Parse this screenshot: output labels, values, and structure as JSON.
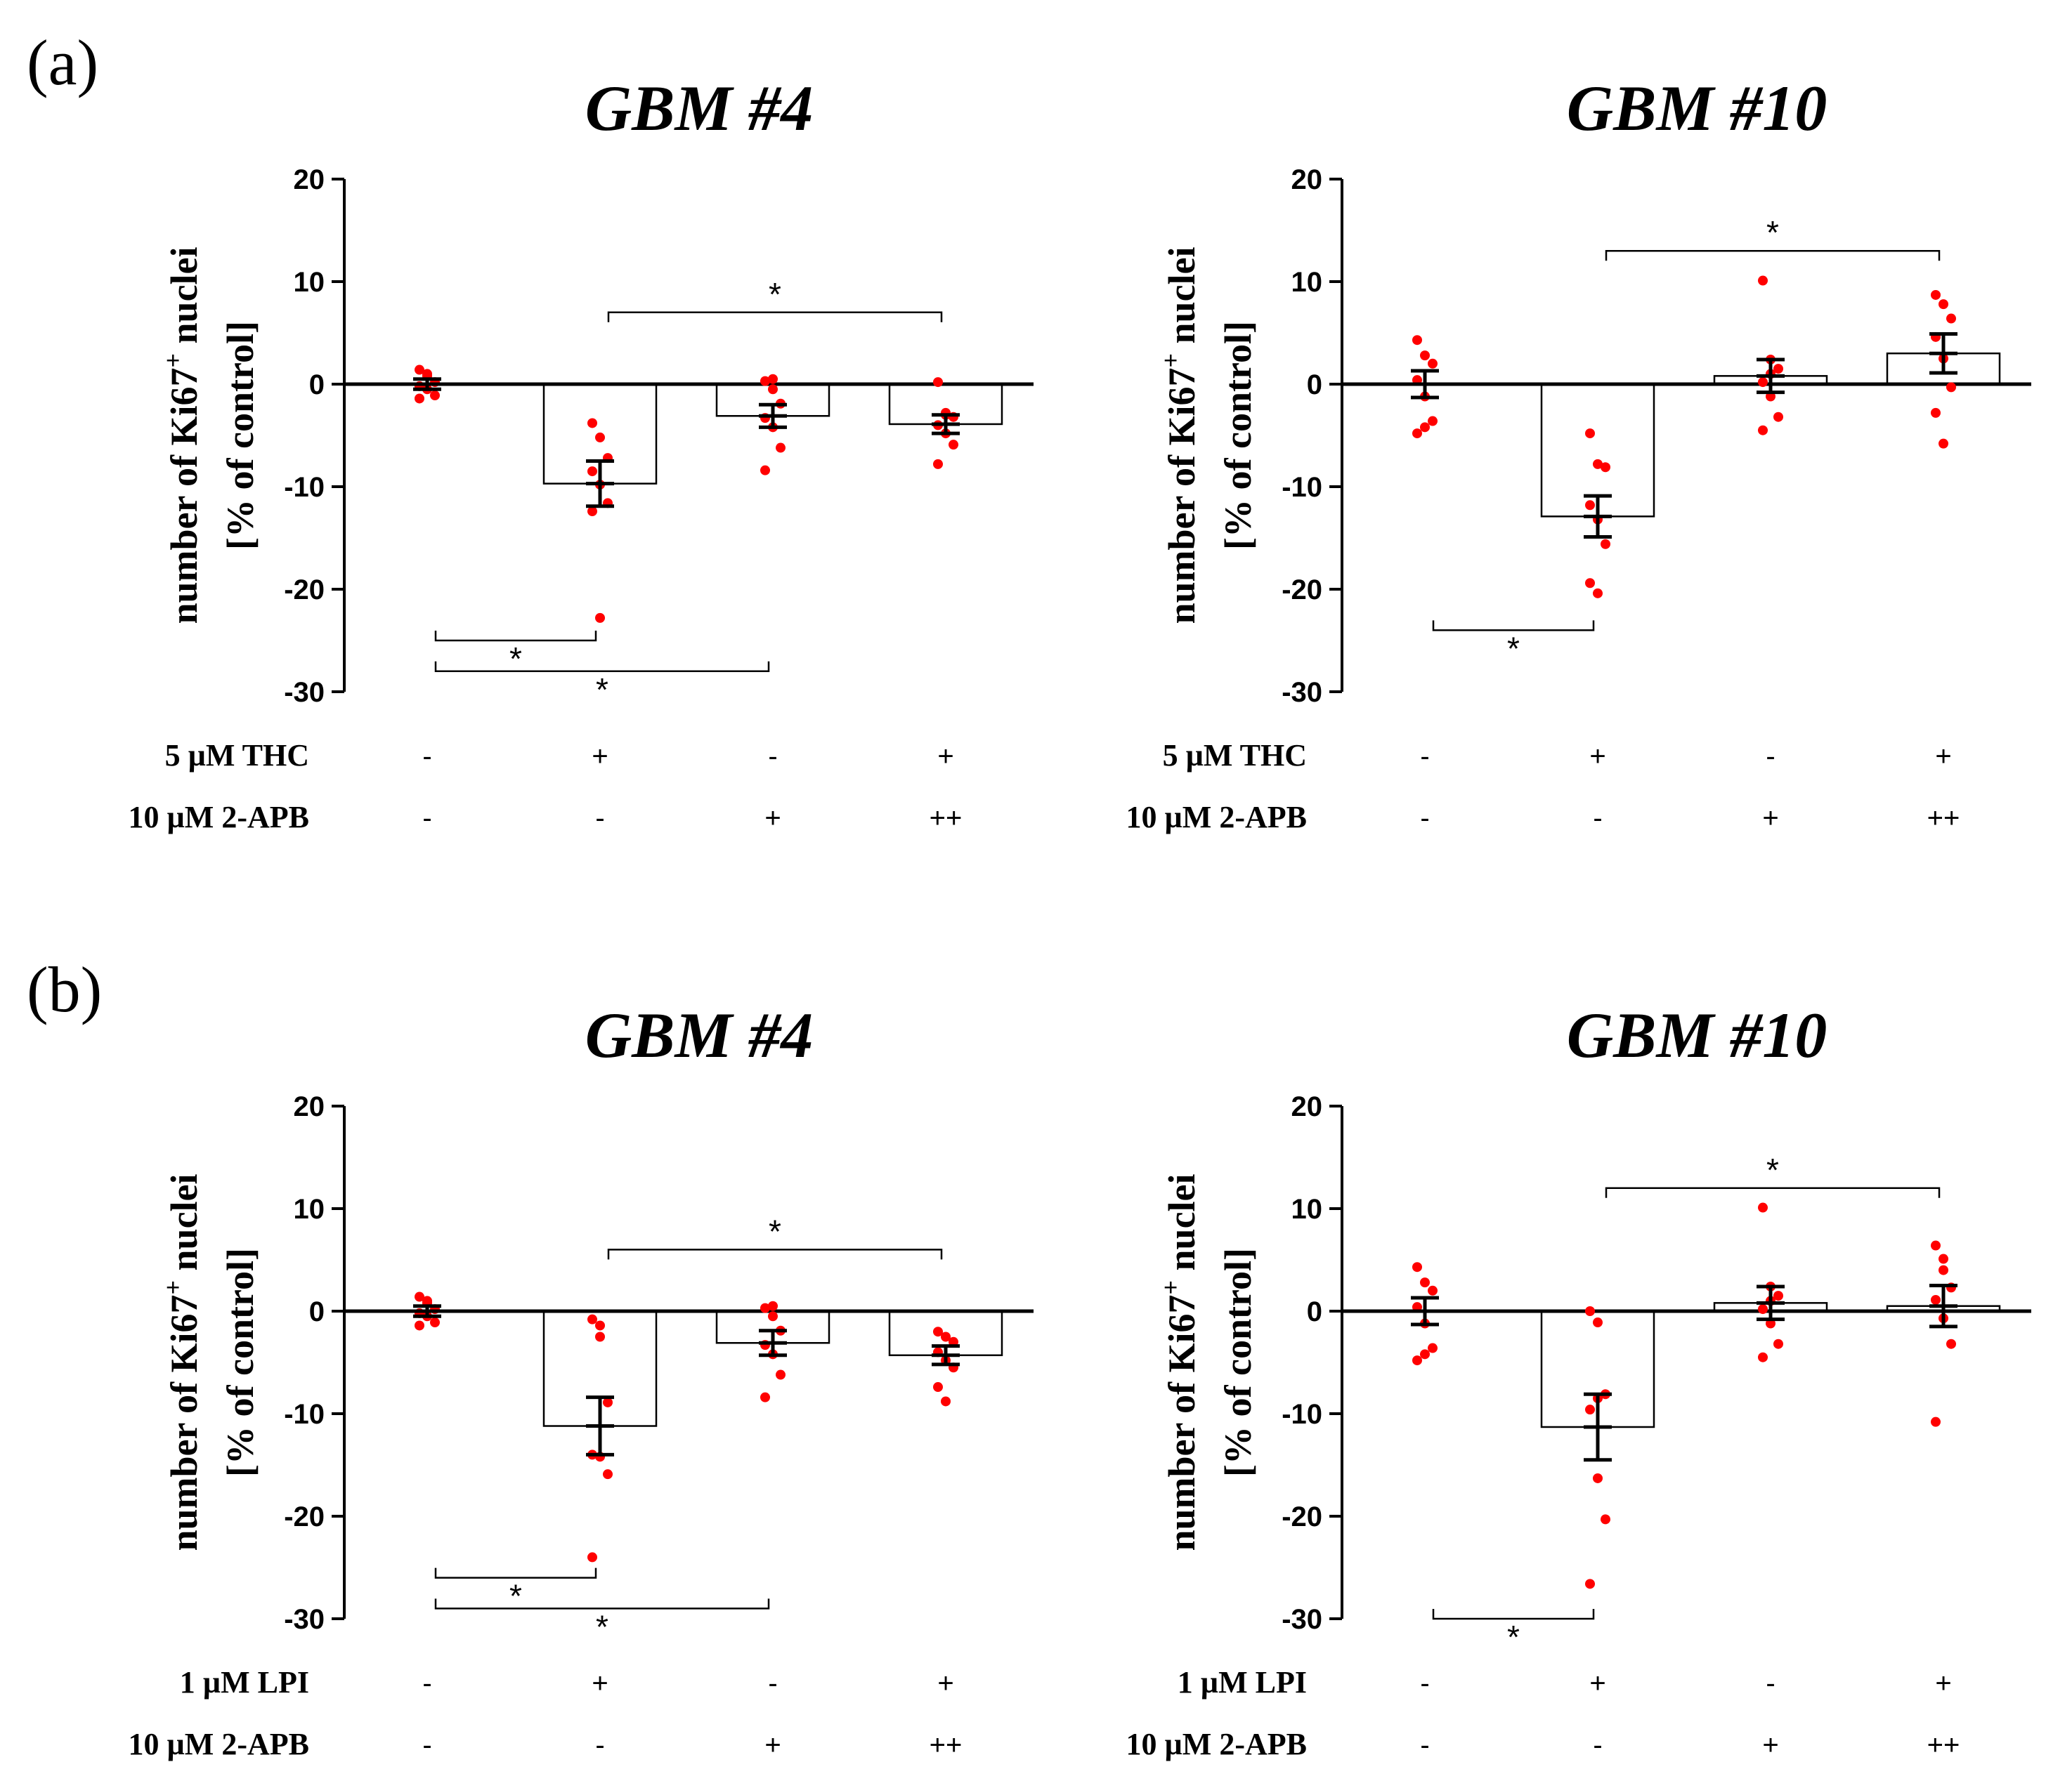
{
  "panels": [
    {
      "letter": "(a)"
    },
    {
      "letter": "(b)"
    }
  ],
  "chart_data": [
    {
      "type": "bar",
      "panel": "(a)",
      "title": "GBM #4",
      "ylabel_line1": "number of Ki67",
      "ylabel_sup": "+",
      "ylabel_line1_end": " nuclei",
      "ylabel_line2": "[% of control]",
      "ylim": [
        -30,
        20
      ],
      "yticks": [
        "20",
        "10",
        "0",
        "-10",
        "-20",
        "-30"
      ],
      "ytick_values": [
        20,
        10,
        0,
        -10,
        -20,
        -30
      ],
      "condition_labels": [
        "5 µM THC",
        "10 µM 2-APB"
      ],
      "condition_marks": [
        [
          "-",
          "+",
          "-",
          "+"
        ],
        [
          "-",
          "-",
          "+",
          "++"
        ]
      ],
      "bar_color": "#ffffff",
      "point_color": "#ff0000",
      "values": [
        0,
        -9.7,
        -3.1,
        -3.9
      ],
      "errors": [
        0.5,
        2.2,
        1.1,
        0.9
      ],
      "points": [
        [
          1.4,
          0.8,
          0.2,
          -0.2,
          -0.5,
          -1.1,
          -1.4,
          1.0
        ],
        [
          -3.8,
          -5.2,
          -7.2,
          -8.5,
          -9.8,
          -11.6,
          -12.4,
          -22.8
        ],
        [
          0.3,
          -0.5,
          -1.9,
          -3.3,
          -4.2,
          -6.2,
          -8.4,
          0.5
        ],
        [
          0.2,
          -2.8,
          -3.2,
          -4.0,
          -4.8,
          -5.9,
          -7.8,
          -3.0
        ]
      ],
      "significance": [
        {
          "from": 1,
          "to": 3,
          "y": 7,
          "label": "*"
        },
        {
          "from": 0,
          "to": 1,
          "y": -25,
          "label": "*"
        },
        {
          "from": 0,
          "to": 2,
          "y": -28,
          "label": "*"
        }
      ]
    },
    {
      "type": "bar",
      "panel": "(a)",
      "title": "GBM #10",
      "ylabel_line1": "number of Ki67",
      "ylabel_sup": "+",
      "ylabel_line1_end": " nuclei",
      "ylabel_line2": "[% of control]",
      "ylim": [
        -30,
        20
      ],
      "yticks": [
        "20",
        "10",
        "0",
        "-10",
        "-20",
        "-30"
      ],
      "ytick_values": [
        20,
        10,
        0,
        -10,
        -20,
        -30
      ],
      "condition_labels": [
        "5 µM THC",
        "10 µM 2-APB"
      ],
      "condition_marks": [
        [
          "-",
          "+",
          "-",
          "+"
        ],
        [
          "-",
          "-",
          "+",
          "++"
        ]
      ],
      "bar_color": "#ffffff",
      "point_color": "#ff0000",
      "values": [
        0,
        -12.9,
        0.8,
        3.0
      ],
      "errors": [
        1.3,
        2.0,
        1.6,
        1.9
      ],
      "points": [
        [
          4.3,
          2.8,
          2.0,
          0.4,
          -1.2,
          -3.6,
          -4.8,
          -4.2
        ],
        [
          -4.8,
          -7.8,
          -8.1,
          -11.8,
          -13.2,
          -15.6,
          -19.4,
          -20.4
        ],
        [
          10.1,
          2.4,
          1.5,
          0.2,
          -1.2,
          -3.2,
          -4.5,
          1.0
        ],
        [
          8.7,
          7.8,
          6.4,
          4.6,
          2.5,
          -0.3,
          -2.8,
          -5.8
        ]
      ],
      "significance": [
        {
          "from": 1,
          "to": 3,
          "y": 13,
          "label": "*"
        },
        {
          "from": 0,
          "to": 1,
          "y": -24,
          "label": "*"
        }
      ]
    },
    {
      "type": "bar",
      "panel": "(b)",
      "title": "GBM #4",
      "ylabel_line1": "number of Ki67",
      "ylabel_sup": "+",
      "ylabel_line1_end": " nuclei",
      "ylabel_line2": "[% of control]",
      "ylim": [
        -30,
        20
      ],
      "yticks": [
        "20",
        "10",
        "0",
        "-10",
        "-20",
        "-30"
      ],
      "ytick_values": [
        20,
        10,
        0,
        -10,
        -20,
        -30
      ],
      "condition_labels": [
        "1 µM LPI",
        "10 µM 2-APB"
      ],
      "condition_marks": [
        [
          "-",
          "+",
          "-",
          "+"
        ],
        [
          "-",
          "-",
          "+",
          "++"
        ]
      ],
      "bar_color": "#ffffff",
      "point_color": "#ff0000",
      "values": [
        0,
        -11.2,
        -3.1,
        -4.3
      ],
      "errors": [
        0.5,
        2.8,
        1.2,
        0.9
      ],
      "points": [
        [
          1.4,
          0.8,
          0.2,
          -0.2,
          -0.5,
          -1.1,
          -1.4,
          1.0
        ],
        [
          -0.8,
          -2.5,
          -8.9,
          -14.0,
          -14.2,
          -15.9,
          -24.0,
          -1.4
        ],
        [
          0.3,
          -0.5,
          -1.9,
          -3.3,
          -4.2,
          -6.2,
          -8.4,
          0.5
        ],
        [
          -2.0,
          -2.5,
          -3.0,
          -4.0,
          -4.8,
          -5.5,
          -7.4,
          -8.8
        ]
      ],
      "significance": [
        {
          "from": 1,
          "to": 3,
          "y": 6,
          "label": "*"
        },
        {
          "from": 0,
          "to": 1,
          "y": -26,
          "label": "*"
        },
        {
          "from": 0,
          "to": 2,
          "y": -29,
          "label": "*"
        }
      ]
    },
    {
      "type": "bar",
      "panel": "(b)",
      "title": "GBM #10",
      "ylabel_line1": "number of Ki67",
      "ylabel_sup": "+",
      "ylabel_line1_end": " nuclei",
      "ylabel_line2": "[% of control]",
      "ylim": [
        -30,
        20
      ],
      "yticks": [
        "20",
        "10",
        "0",
        "-10",
        "-20",
        "-30"
      ],
      "ytick_values": [
        20,
        10,
        0,
        -10,
        -20,
        -30
      ],
      "condition_labels": [
        "1 µM LPI",
        "10 µM 2-APB"
      ],
      "condition_marks": [
        [
          "-",
          "+",
          "-",
          "+"
        ],
        [
          "-",
          "-",
          "+",
          "++"
        ]
      ],
      "bar_color": "#ffffff",
      "point_color": "#ff0000",
      "values": [
        0,
        -11.3,
        0.8,
        0.5
      ],
      "errors": [
        1.3,
        3.2,
        1.6,
        2.0
      ],
      "points": [
        [
          4.3,
          2.8,
          2.0,
          0.4,
          -1.2,
          -3.6,
          -4.8,
          -4.2
        ],
        [
          0.0,
          -1.1,
          -8.1,
          -9.6,
          -16.3,
          -20.3,
          -26.6,
          -8.5
        ],
        [
          10.1,
          2.4,
          1.5,
          0.2,
          -1.2,
          -3.2,
          -4.5,
          1.0
        ],
        [
          6.4,
          5.1,
          2.3,
          1.1,
          -0.7,
          -3.2,
          -10.8,
          4.0
        ]
      ],
      "significance": [
        {
          "from": 1,
          "to": 3,
          "y": 12,
          "label": "*"
        },
        {
          "from": 0,
          "to": 1,
          "y": -30,
          "label": "*"
        }
      ]
    }
  ]
}
